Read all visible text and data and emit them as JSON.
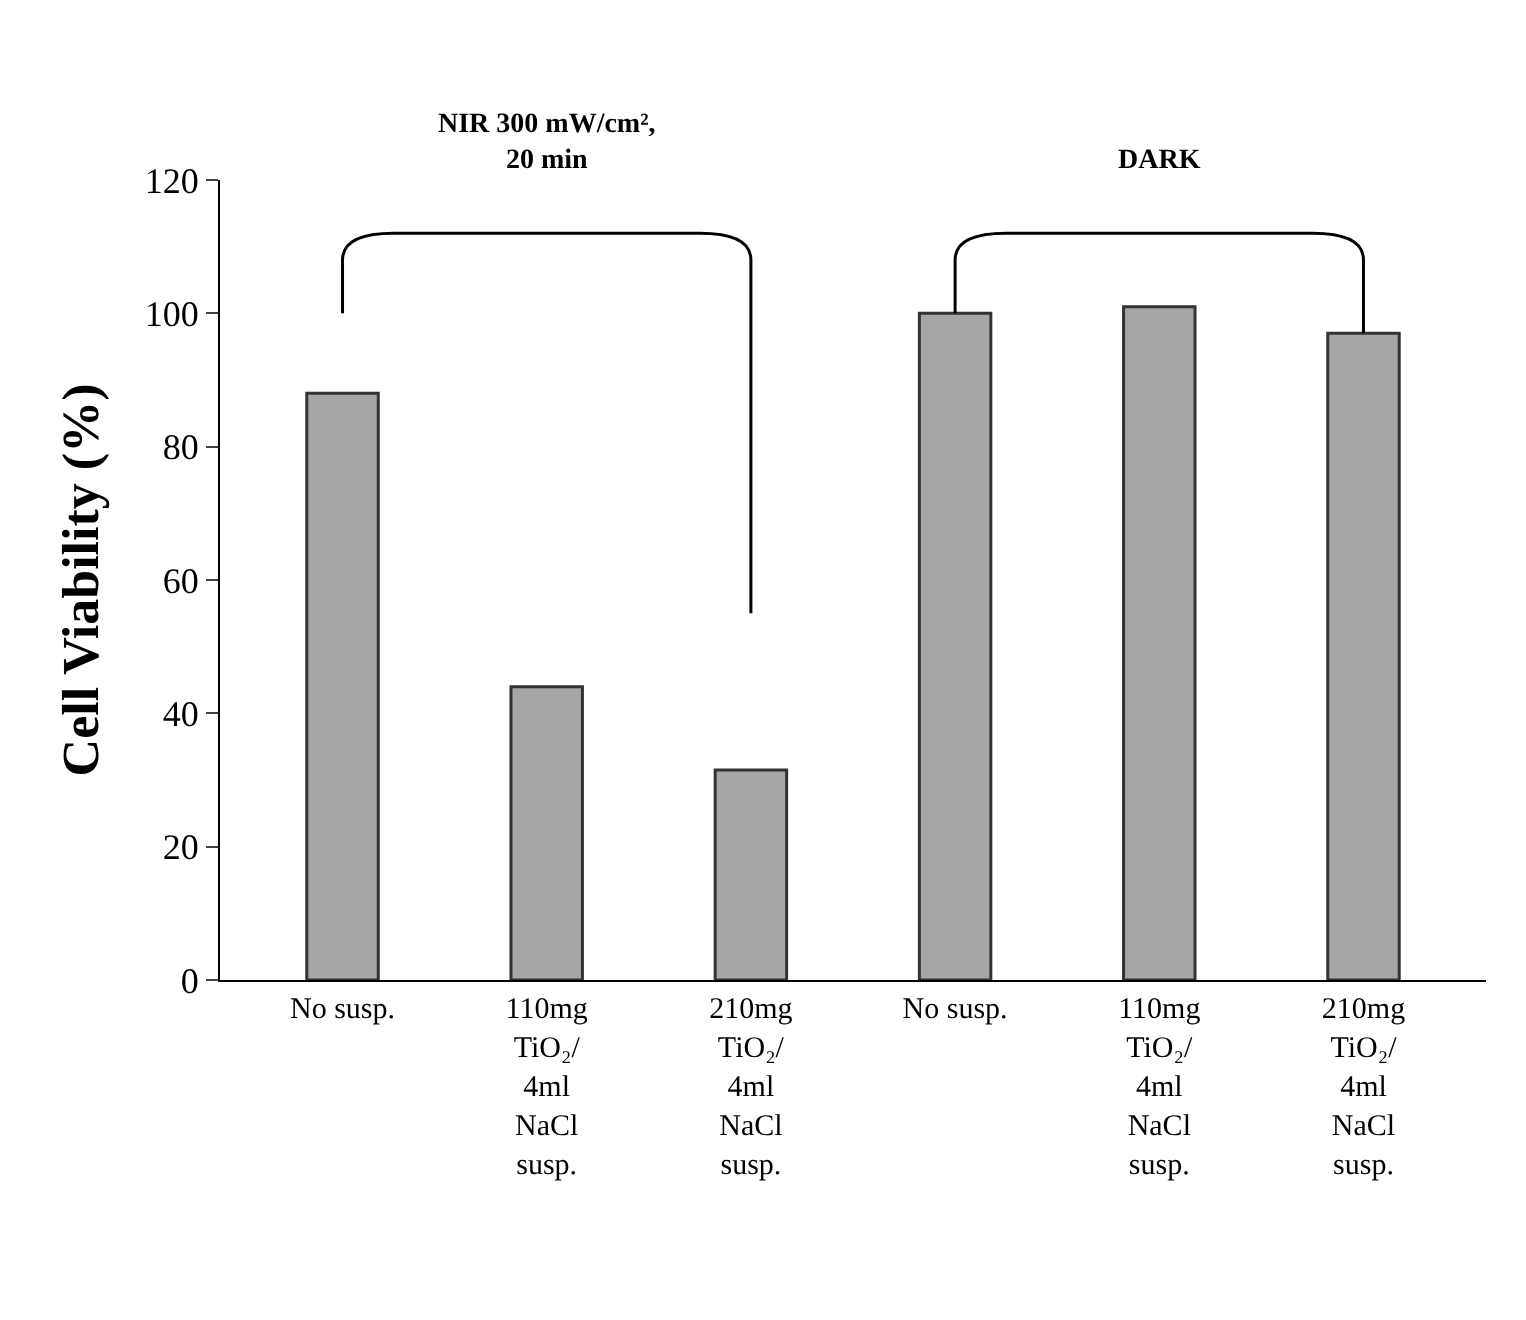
{
  "chart_data": {
    "type": "bar",
    "ylabel": "Cell Viability (%)",
    "categories": [
      "No susp.",
      "110mg\nTiO₂/\n4ml\nNaCl\nsusp.",
      "210mg\nTiO₂/\n4ml\nNaCl\nsusp.",
      "No susp.",
      "110mg\nTiO₂/\n4ml\nNaCl\nsusp.",
      "210mg\nTiO₂/\n4ml\nNaCl\nsusp."
    ],
    "values": [
      88,
      44,
      31.5,
      100,
      101,
      97
    ],
    "color": "#a6a6a6",
    "ylim": [
      0,
      120
    ],
    "yticks": [
      0,
      20,
      40,
      60,
      80,
      100,
      120
    ],
    "annotations": [
      "NIR 300 mW/cm², 20 min",
      "DARK"
    ]
  }
}
